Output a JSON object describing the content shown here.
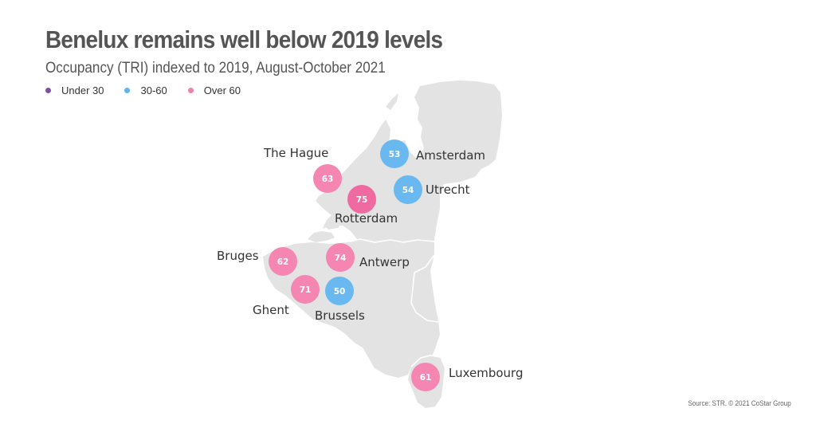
{
  "title": "Benelux remains well below 2019 levels",
  "subtitle": "Occupancy (TRI) indexed to 2019, August-October 2021",
  "legend": [
    {
      "label": "Under 30",
      "color": "#7b4fa6"
    },
    {
      "label": "30-60",
      "color": "#5eb4ec"
    },
    {
      "label": "Over 60",
      "color": "#f080ad"
    }
  ],
  "colors": {
    "land": "#e3e3e3",
    "border": "#ffffff",
    "under_30": "#7b4fa6",
    "30_60": "#6ab8f0",
    "over_60": "#f486b1",
    "over_60_dark": "#ee6aa0"
  },
  "cities": [
    {
      "name": "Amsterdam",
      "value": "53",
      "band": "30-60"
    },
    {
      "name": "The Hague",
      "value": "63",
      "band": "Over 60"
    },
    {
      "name": "Rotterdam",
      "value": "75",
      "band": "Over 60"
    },
    {
      "name": "Utrecht",
      "value": "54",
      "band": "30-60"
    },
    {
      "name": "Bruges",
      "value": "62",
      "band": "Over 60"
    },
    {
      "name": "Antwerp",
      "value": "74",
      "band": "Over 60"
    },
    {
      "name": "Ghent",
      "value": "71",
      "band": "Over 60"
    },
    {
      "name": "Brussels",
      "value": "50",
      "band": "30-60"
    },
    {
      "name": "Luxembourg",
      "value": "61",
      "band": "Over 60"
    }
  ],
  "source": "Source: STR. © 2021 CoStar Group"
}
